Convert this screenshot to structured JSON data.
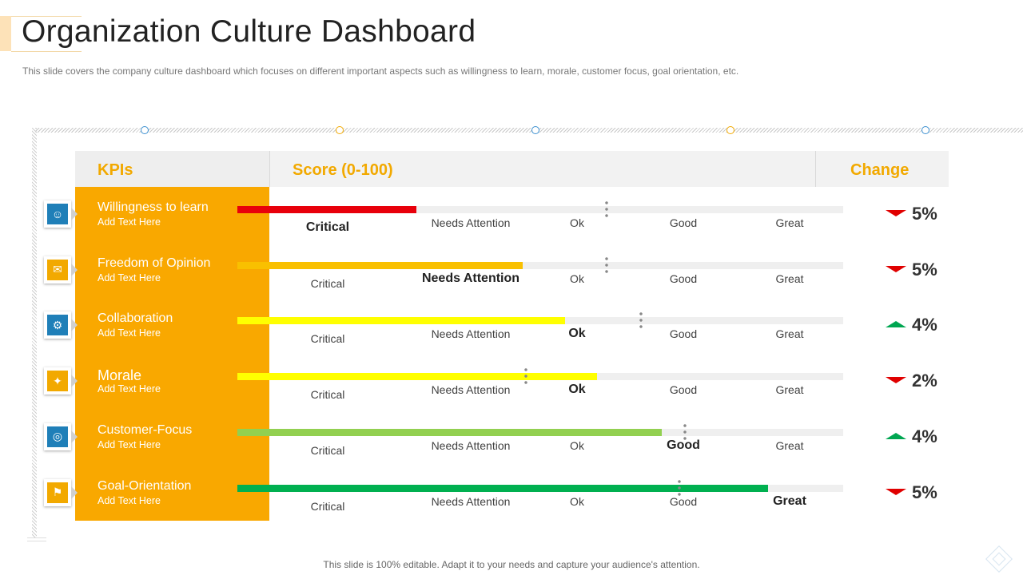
{
  "header": {
    "title": "Organization Culture Dashboard",
    "subtitle": "This slide covers the company culture dashboard which focuses on different  important aspects such as willingness to learn, morale, customer focus, goal orientation, etc."
  },
  "table": {
    "col_kpi": "KPIs",
    "col_score": "Score (0-100)",
    "col_change": "Change",
    "levels": [
      "Critical",
      "Needs Attention",
      "Ok",
      "Good",
      "Great"
    ],
    "rows": [
      {
        "name": "Willingness to learn",
        "sub": "Add Text Here",
        "icon": "user-badge-icon",
        "icon_color": "#1f7fb8",
        "bar_color": "#e8000b",
        "score_fraction": 0.295,
        "marker_fraction": 0.61,
        "highlight": "Critical",
        "change": "5%",
        "direction": "down"
      },
      {
        "name": "Freedom of Opinion",
        "sub": "Add Text Here",
        "icon": "speech-board-icon",
        "icon_color": "#f2a900",
        "bar_color": "#f9c000",
        "score_fraction": 0.471,
        "marker_fraction": 0.61,
        "highlight": "Needs Attention",
        "change": "5%",
        "direction": "down"
      },
      {
        "name": "Collaboration",
        "sub": "Add Text Here",
        "icon": "gear-people-icon",
        "icon_color": "#1f7fb8",
        "bar_color": "#ffff00",
        "score_fraction": 0.541,
        "marker_fraction": 0.666,
        "highlight": "Ok",
        "change": "4%",
        "direction": "up"
      },
      {
        "name": "Morale",
        "sub": "Add Text Here",
        "icon": "handshake-icon",
        "icon_color": "#f2a900",
        "bar_color": "#ffff00",
        "score_fraction": 0.594,
        "marker_fraction": 0.476,
        "highlight": "Ok",
        "change": "2%",
        "direction": "down"
      },
      {
        "name": "Customer-Focus",
        "sub": "Add Text Here",
        "icon": "target-icon",
        "icon_color": "#1f7fb8",
        "bar_color": "#92d050",
        "score_fraction": 0.7,
        "marker_fraction": 0.739,
        "highlight": "Good",
        "change": "4%",
        "direction": "up"
      },
      {
        "name": "Goal-Orientation",
        "sub": "Add Text Here",
        "icon": "goal-stairs-icon",
        "icon_color": "#f2a900",
        "bar_color": "#00b050",
        "score_fraction": 0.876,
        "marker_fraction": 0.73,
        "highlight": "Great",
        "change": "5%",
        "direction": "down"
      }
    ]
  },
  "footer": {
    "text": "This slide is 100% editable. Adapt it to your needs and capture your audience's attention."
  }
}
